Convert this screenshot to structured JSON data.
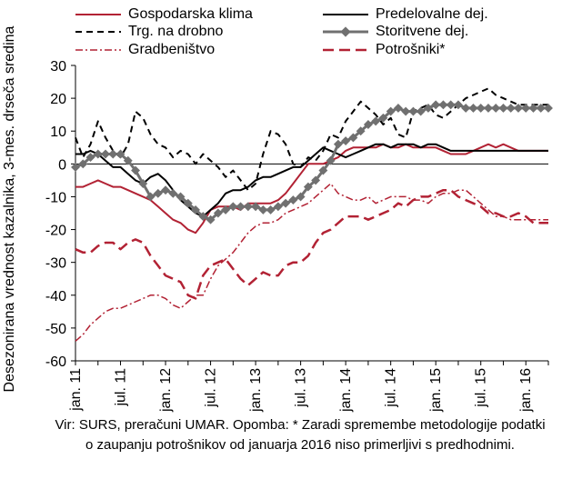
{
  "chart_data": {
    "type": "line",
    "ylabel": "Desezonirana vrednost kazalnika, 3-mes. drseča sredina",
    "xlabel": "",
    "ylim": [
      -60,
      30
    ],
    "yticks": [
      -60,
      -50,
      -40,
      -30,
      -20,
      -10,
      0,
      10,
      20,
      30
    ],
    "x_tick_labels": [
      "jan. 11",
      "jul. 11",
      "jan. 12",
      "jul. 12",
      "jan. 13",
      "jul. 13",
      "jan. 14",
      "jul. 14",
      "jan. 15",
      "jul. 15",
      "jan. 16"
    ],
    "x_tick_months": [
      0,
      6,
      12,
      18,
      24,
      30,
      36,
      42,
      48,
      54,
      60
    ],
    "x_months_total": 63,
    "grid": false,
    "legend_position": "top",
    "series": [
      {
        "name": "Gospodarska klima",
        "color": "#B22234",
        "style": "solid",
        "values": [
          -7,
          -7,
          -6,
          -5,
          -6,
          -7,
          -7,
          -8,
          -9,
          -10,
          -11,
          -13,
          -15,
          -17,
          -18,
          -20,
          -21,
          -18,
          -14,
          -13,
          -13,
          -13,
          -14,
          -12,
          -12,
          -12,
          -12,
          -11,
          -9,
          -6,
          -3,
          0,
          0,
          0,
          1,
          2,
          4,
          5,
          5,
          5,
          5,
          6,
          5,
          5,
          6,
          5,
          5,
          5,
          5,
          4,
          3,
          3,
          3,
          4,
          5,
          6,
          5,
          6,
          5,
          4,
          4,
          4,
          4,
          4
        ]
      },
      {
        "name": "Predelovalne dej.",
        "color": "#000000",
        "style": "solid",
        "values": [
          3,
          3,
          4,
          3,
          1,
          -1,
          -1,
          -3,
          -5,
          -6,
          -4,
          -3,
          -5,
          -8,
          -11,
          -13,
          -15,
          -16,
          -14,
          -12,
          -9,
          -8,
          -8,
          -7,
          -5,
          -4,
          -4,
          -3,
          -2,
          -1,
          -1,
          1,
          3,
          5,
          4,
          3,
          2,
          3,
          4,
          5,
          6,
          6,
          5,
          6,
          6,
          6,
          5,
          6,
          6,
          5,
          4,
          4,
          4,
          4,
          4,
          4,
          4,
          4,
          4,
          4,
          4,
          4,
          4,
          4
        ]
      },
      {
        "name": "Trg. na drobno",
        "color": "#000000",
        "style": "dash",
        "values": [
          8,
          2,
          6,
          13,
          8,
          4,
          2,
          6,
          16,
          14,
          9,
          6,
          5,
          2,
          4,
          3,
          0,
          3,
          1,
          -1,
          -4,
          -2,
          -5,
          -8,
          -6,
          3,
          10,
          9,
          6,
          0,
          -1,
          2,
          1,
          4,
          9,
          8,
          13,
          16,
          19,
          17,
          15,
          12,
          14,
          9,
          8,
          16,
          17,
          18,
          15,
          14,
          16,
          18,
          20,
          21,
          22,
          23,
          21,
          20,
          19,
          18,
          18,
          18,
          18,
          18
        ]
      },
      {
        "name": "Storitvene dej.",
        "color": "#707070",
        "style": "diamond",
        "values": [
          -1,
          0,
          2,
          3,
          3,
          3,
          3,
          1,
          -2,
          -6,
          -10,
          -9,
          -8,
          -9,
          -10,
          -12,
          -14,
          -16,
          -17,
          -15,
          -14,
          -13,
          -13,
          -13,
          -13,
          -14,
          -14,
          -13,
          -12,
          -11,
          -10,
          -7,
          -5,
          -2,
          1,
          6,
          7,
          8,
          10,
          12,
          13,
          14,
          16,
          17,
          16,
          16,
          16,
          17,
          18,
          18,
          18,
          18,
          17,
          17,
          17,
          17,
          17,
          17,
          17,
          17,
          17,
          17,
          17,
          17
        ]
      },
      {
        "name": "Gradbeništvo",
        "color": "#B22234",
        "style": "dashdot",
        "values": [
          -54,
          -52,
          -49,
          -47,
          -45,
          -44,
          -44,
          -43,
          -42,
          -41,
          -40,
          -40,
          -41,
          -43,
          -44,
          -42,
          -40,
          -40,
          -35,
          -31,
          -29,
          -27,
          -24,
          -21,
          -19,
          -18,
          -18,
          -17,
          -15,
          -14,
          -13,
          -12,
          -10,
          -8,
          -6,
          -9,
          -10,
          -11,
          -11,
          -10,
          -12,
          -11,
          -10,
          -10,
          -10,
          -11,
          -11,
          -12,
          -10,
          -9,
          -9,
          -8,
          -8,
          -10,
          -12,
          -14,
          -16,
          -16,
          -17,
          -17,
          -17,
          -17,
          -17,
          -17
        ]
      },
      {
        "name": "Potrošniki*",
        "color": "#B22234",
        "style": "longdash",
        "values": [
          -26,
          -27,
          -27,
          -25,
          -24,
          -24,
          -26,
          -24,
          -23,
          -24,
          -28,
          -31,
          -34,
          -35,
          -36,
          -40,
          -41,
          -34,
          -31,
          -30,
          -29,
          -32,
          -35,
          -37,
          -35,
          -33,
          -34,
          -34,
          -31,
          -30,
          -30,
          -28,
          -24,
          -21,
          -20,
          -18,
          -16,
          -16,
          -16,
          -17,
          -16,
          -15,
          -14,
          -12,
          -13,
          -11,
          -10,
          -10,
          -9,
          -8,
          -8,
          -10,
          -11,
          -12,
          -13,
          -15,
          -15,
          -16,
          -16,
          -15,
          -16,
          -18,
          -18,
          -18
        ]
      }
    ],
    "note": "Vir: SURS, preračuni UMAR. Opomba: * Zaradi spremembe metodologije podatki o zaupanju potrošnikov od januarja 2016 niso primerljivi s predhodnimi."
  }
}
